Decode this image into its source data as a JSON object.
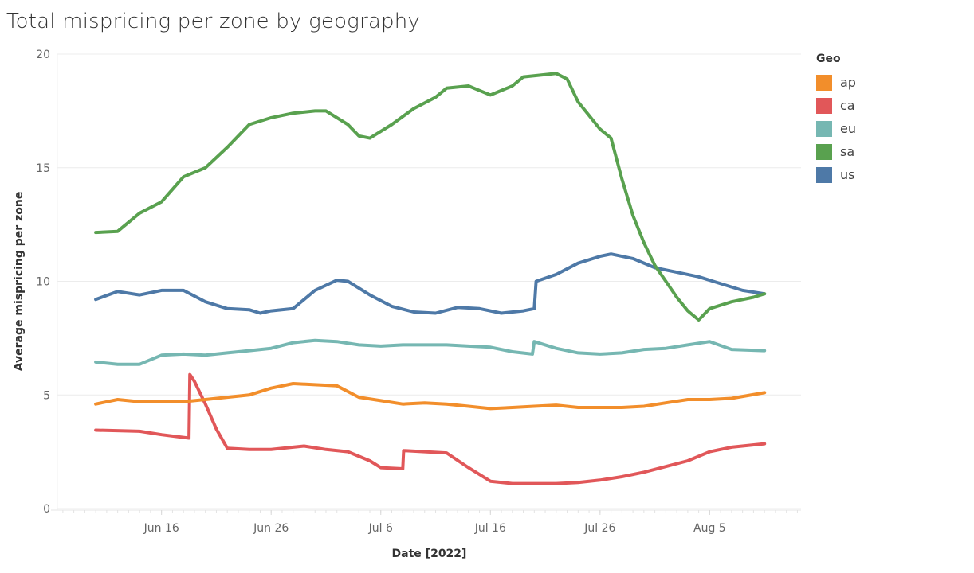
{
  "chart_data": {
    "type": "line",
    "title": "Total mispricing per zone by geography",
    "xlabel": "Date [2022]",
    "ylabel": "Average mispricing per zone",
    "ylim": [
      0,
      20
    ],
    "xlim": [
      "2022-06-06T12:00",
      "2022-08-13T08:00"
    ],
    "yticks": [
      0,
      5,
      10,
      15,
      20
    ],
    "xticks": [
      {
        "date": "2022-06-16",
        "label": "Jun 16"
      },
      {
        "date": "2022-06-26",
        "label": "Jun 26"
      },
      {
        "date": "2022-07-06",
        "label": "Jul 6"
      },
      {
        "date": "2022-07-16",
        "label": "Jul 16"
      },
      {
        "date": "2022-07-26",
        "label": "Jul 26"
      },
      {
        "date": "2022-08-05",
        "label": "Aug 5"
      }
    ],
    "grid": true,
    "legend": {
      "title": "Geo",
      "placement": "right"
    },
    "series": [
      {
        "name": "ap",
        "color": "#f28e2b",
        "points": [
          [
            "2022-06-10",
            4.6
          ],
          [
            "2022-06-12",
            4.8
          ],
          [
            "2022-06-14",
            4.7
          ],
          [
            "2022-06-16",
            4.7
          ],
          [
            "2022-06-18",
            4.7
          ],
          [
            "2022-06-20",
            4.8
          ],
          [
            "2022-06-22",
            4.9
          ],
          [
            "2022-06-24",
            5.0
          ],
          [
            "2022-06-26",
            5.3
          ],
          [
            "2022-06-28",
            5.5
          ],
          [
            "2022-06-30",
            5.45
          ],
          [
            "2022-07-02",
            5.4
          ],
          [
            "2022-07-04",
            4.9
          ],
          [
            "2022-07-06",
            4.75
          ],
          [
            "2022-07-08",
            4.6
          ],
          [
            "2022-07-10",
            4.65
          ],
          [
            "2022-07-12",
            4.6
          ],
          [
            "2022-07-14",
            4.5
          ],
          [
            "2022-07-16",
            4.4
          ],
          [
            "2022-07-18",
            4.45
          ],
          [
            "2022-07-20",
            4.5
          ],
          [
            "2022-07-22",
            4.55
          ],
          [
            "2022-07-24",
            4.45
          ],
          [
            "2022-07-26",
            4.45
          ],
          [
            "2022-07-28",
            4.45
          ],
          [
            "2022-07-30",
            4.5
          ],
          [
            "2022-08-01",
            4.65
          ],
          [
            "2022-08-03",
            4.8
          ],
          [
            "2022-08-05",
            4.8
          ],
          [
            "2022-08-07",
            4.85
          ],
          [
            "2022-08-10",
            5.1
          ]
        ]
      },
      {
        "name": "ca",
        "color": "#e15759",
        "points": [
          [
            "2022-06-10",
            3.45
          ],
          [
            "2022-06-14",
            3.4
          ],
          [
            "2022-06-16",
            3.25
          ],
          [
            "2022-06-18T12:00",
            3.1
          ],
          [
            "2022-06-18T14:00",
            5.9
          ],
          [
            "2022-06-19",
            5.6
          ],
          [
            "2022-06-20",
            4.6
          ],
          [
            "2022-06-21",
            3.5
          ],
          [
            "2022-06-22",
            2.65
          ],
          [
            "2022-06-24",
            2.6
          ],
          [
            "2022-06-26",
            2.6
          ],
          [
            "2022-06-28",
            2.7
          ],
          [
            "2022-06-29",
            2.75
          ],
          [
            "2022-07-01",
            2.6
          ],
          [
            "2022-07-03",
            2.5
          ],
          [
            "2022-07-05",
            2.1
          ],
          [
            "2022-07-06",
            1.8
          ],
          [
            "2022-07-08",
            1.75
          ],
          [
            "2022-07-08T02:00",
            2.55
          ],
          [
            "2022-07-10",
            2.5
          ],
          [
            "2022-07-12",
            2.45
          ],
          [
            "2022-07-14",
            1.8
          ],
          [
            "2022-07-16",
            1.2
          ],
          [
            "2022-07-18",
            1.1
          ],
          [
            "2022-07-20",
            1.1
          ],
          [
            "2022-07-22",
            1.1
          ],
          [
            "2022-07-24",
            1.15
          ],
          [
            "2022-07-26",
            1.25
          ],
          [
            "2022-07-28",
            1.4
          ],
          [
            "2022-07-30",
            1.6
          ],
          [
            "2022-08-01",
            1.85
          ],
          [
            "2022-08-03",
            2.1
          ],
          [
            "2022-08-05",
            2.5
          ],
          [
            "2022-08-07",
            2.7
          ],
          [
            "2022-08-10",
            2.85
          ]
        ]
      },
      {
        "name": "eu",
        "color": "#76b7b2",
        "points": [
          [
            "2022-06-10",
            6.45
          ],
          [
            "2022-06-12",
            6.35
          ],
          [
            "2022-06-14",
            6.35
          ],
          [
            "2022-06-16",
            6.75
          ],
          [
            "2022-06-18",
            6.8
          ],
          [
            "2022-06-20",
            6.75
          ],
          [
            "2022-06-22",
            6.85
          ],
          [
            "2022-06-24",
            6.95
          ],
          [
            "2022-06-26",
            7.05
          ],
          [
            "2022-06-28",
            7.3
          ],
          [
            "2022-06-30",
            7.4
          ],
          [
            "2022-07-02",
            7.35
          ],
          [
            "2022-07-04",
            7.2
          ],
          [
            "2022-07-06",
            7.15
          ],
          [
            "2022-07-08",
            7.2
          ],
          [
            "2022-07-10",
            7.2
          ],
          [
            "2022-07-12",
            7.2
          ],
          [
            "2022-07-14",
            7.15
          ],
          [
            "2022-07-16",
            7.1
          ],
          [
            "2022-07-18",
            6.9
          ],
          [
            "2022-07-19T20:00",
            6.8
          ],
          [
            "2022-07-20",
            7.35
          ],
          [
            "2022-07-22",
            7.05
          ],
          [
            "2022-07-24",
            6.85
          ],
          [
            "2022-07-26",
            6.8
          ],
          [
            "2022-07-28",
            6.85
          ],
          [
            "2022-07-30",
            7.0
          ],
          [
            "2022-08-01",
            7.05
          ],
          [
            "2022-08-03",
            7.2
          ],
          [
            "2022-08-05",
            7.35
          ],
          [
            "2022-08-07",
            7.0
          ],
          [
            "2022-08-10",
            6.95
          ]
        ]
      },
      {
        "name": "sa",
        "color": "#59a14f",
        "points": [
          [
            "2022-06-10",
            12.15
          ],
          [
            "2022-06-12",
            12.2
          ],
          [
            "2022-06-14",
            13.0
          ],
          [
            "2022-06-16",
            13.5
          ],
          [
            "2022-06-18",
            14.6
          ],
          [
            "2022-06-20",
            15.0
          ],
          [
            "2022-06-22",
            15.9
          ],
          [
            "2022-06-24",
            16.9
          ],
          [
            "2022-06-26",
            17.2
          ],
          [
            "2022-06-28",
            17.4
          ],
          [
            "2022-06-30",
            17.5
          ],
          [
            "2022-07-01",
            17.5
          ],
          [
            "2022-07-03",
            16.9
          ],
          [
            "2022-07-04",
            16.4
          ],
          [
            "2022-07-05",
            16.3
          ],
          [
            "2022-07-07",
            16.9
          ],
          [
            "2022-07-09",
            17.6
          ],
          [
            "2022-07-11",
            18.1
          ],
          [
            "2022-07-12",
            18.5
          ],
          [
            "2022-07-14",
            18.6
          ],
          [
            "2022-07-15",
            18.4
          ],
          [
            "2022-07-16",
            18.2
          ],
          [
            "2022-07-18",
            18.6
          ],
          [
            "2022-07-19",
            19.0
          ],
          [
            "2022-07-21",
            19.1
          ],
          [
            "2022-07-22",
            19.15
          ],
          [
            "2022-07-23",
            18.9
          ],
          [
            "2022-07-24",
            17.9
          ],
          [
            "2022-07-25",
            17.3
          ],
          [
            "2022-07-26",
            16.7
          ],
          [
            "2022-07-27",
            16.3
          ],
          [
            "2022-07-28",
            14.5
          ],
          [
            "2022-07-29",
            12.9
          ],
          [
            "2022-07-30",
            11.7
          ],
          [
            "2022-07-31",
            10.7
          ],
          [
            "2022-08-01",
            10.0
          ],
          [
            "2022-08-02",
            9.3
          ],
          [
            "2022-08-03",
            8.7
          ],
          [
            "2022-08-04",
            8.3
          ],
          [
            "2022-08-05",
            8.8
          ],
          [
            "2022-08-07",
            9.1
          ],
          [
            "2022-08-09",
            9.3
          ],
          [
            "2022-08-10",
            9.45
          ]
        ]
      },
      {
        "name": "us",
        "color": "#4e79a7",
        "points": [
          [
            "2022-06-10",
            9.2
          ],
          [
            "2022-06-12",
            9.55
          ],
          [
            "2022-06-14",
            9.4
          ],
          [
            "2022-06-16",
            9.6
          ],
          [
            "2022-06-18",
            9.6
          ],
          [
            "2022-06-20",
            9.1
          ],
          [
            "2022-06-22",
            8.8
          ],
          [
            "2022-06-24",
            8.75
          ],
          [
            "2022-06-25",
            8.6
          ],
          [
            "2022-06-26",
            8.7
          ],
          [
            "2022-06-28",
            8.8
          ],
          [
            "2022-06-30",
            9.6
          ],
          [
            "2022-07-02",
            10.05
          ],
          [
            "2022-07-03",
            10.0
          ],
          [
            "2022-07-05",
            9.4
          ],
          [
            "2022-07-07",
            8.9
          ],
          [
            "2022-07-09",
            8.65
          ],
          [
            "2022-07-11",
            8.6
          ],
          [
            "2022-07-13",
            8.85
          ],
          [
            "2022-07-15",
            8.8
          ],
          [
            "2022-07-17",
            8.6
          ],
          [
            "2022-07-19",
            8.7
          ],
          [
            "2022-07-20",
            8.8
          ],
          [
            "2022-07-20T04:00",
            10.0
          ],
          [
            "2022-07-22",
            10.3
          ],
          [
            "2022-07-24",
            10.8
          ],
          [
            "2022-07-26",
            11.1
          ],
          [
            "2022-07-27",
            11.2
          ],
          [
            "2022-07-29",
            11.0
          ],
          [
            "2022-07-31",
            10.6
          ],
          [
            "2022-08-02",
            10.4
          ],
          [
            "2022-08-04",
            10.2
          ],
          [
            "2022-08-06",
            9.9
          ],
          [
            "2022-08-08",
            9.6
          ],
          [
            "2022-08-10",
            9.45
          ]
        ]
      }
    ]
  }
}
